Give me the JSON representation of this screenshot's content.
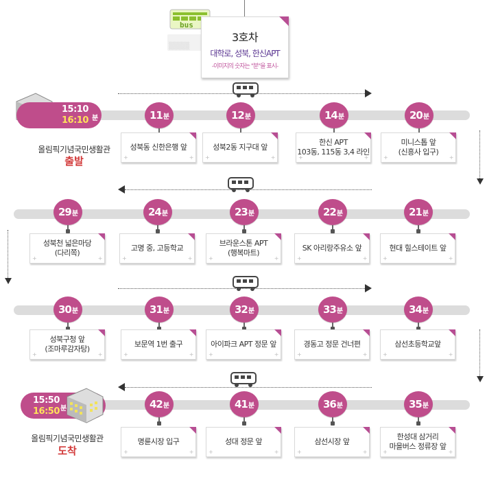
{
  "header": {
    "route_name": "3호차",
    "route_desc": "대학로, 성북, 한신APT",
    "route_note": "-이미지의 숫자는 \"분\"을 표시-",
    "bus_sign_text": "bus"
  },
  "unit": "분",
  "departure": {
    "time1": "15:10",
    "time2": "16:10",
    "unit": "분",
    "place": "올림픽기념국민생활관",
    "status": "출발"
  },
  "arrival": {
    "time1": "15:50",
    "time2": "16:50",
    "unit": "분",
    "place": "올림픽기념국민생활관",
    "status": "도착"
  },
  "rows": [
    {
      "stops": [
        {
          "minutes": "11",
          "label": "성북동 신한은행 앞"
        },
        {
          "minutes": "12",
          "label": "성북2동 지구대 앞"
        },
        {
          "minutes": "14",
          "label": "한신 APT\n103동, 115동 3,4 라인"
        },
        {
          "minutes": "20",
          "label": "미니스톱 앞\n(신흥사 입구)"
        }
      ]
    },
    {
      "stops": [
        {
          "minutes": "29",
          "label": "성북천 넓은마당\n(다리쪽)"
        },
        {
          "minutes": "24",
          "label": "고명 중, 고등학교"
        },
        {
          "minutes": "23",
          "label": "브라운스톤 APT\n(행복마트)"
        },
        {
          "minutes": "22",
          "label": "SK 아리랑주유소 앞"
        },
        {
          "minutes": "21",
          "label": "현대 힐스테이트 앞"
        }
      ]
    },
    {
      "stops": [
        {
          "minutes": "30",
          "label": "성북구청 앞\n(조마루감자탕)"
        },
        {
          "minutes": "31",
          "label": "보문역 1번 출구"
        },
        {
          "minutes": "32",
          "label": "아이파크 APT 정문 앞"
        },
        {
          "minutes": "33",
          "label": "경동고 정문 건너편"
        },
        {
          "minutes": "34",
          "label": "삼선초등학교앞"
        }
      ]
    },
    {
      "stops": [
        {
          "minutes": "42",
          "label": "명륜시장 입구"
        },
        {
          "minutes": "41",
          "label": "성대 정문 앞"
        },
        {
          "minutes": "36",
          "label": "삼선시장 앞"
        },
        {
          "minutes": "35",
          "label": "한성대 삼거리\n마을버스 정류장 앞"
        }
      ]
    }
  ],
  "colors": {
    "accent": "#bf4d8b",
    "road": "#dcdcdc",
    "status": "#d23a3a",
    "time_highlight": "#ffe15a"
  }
}
